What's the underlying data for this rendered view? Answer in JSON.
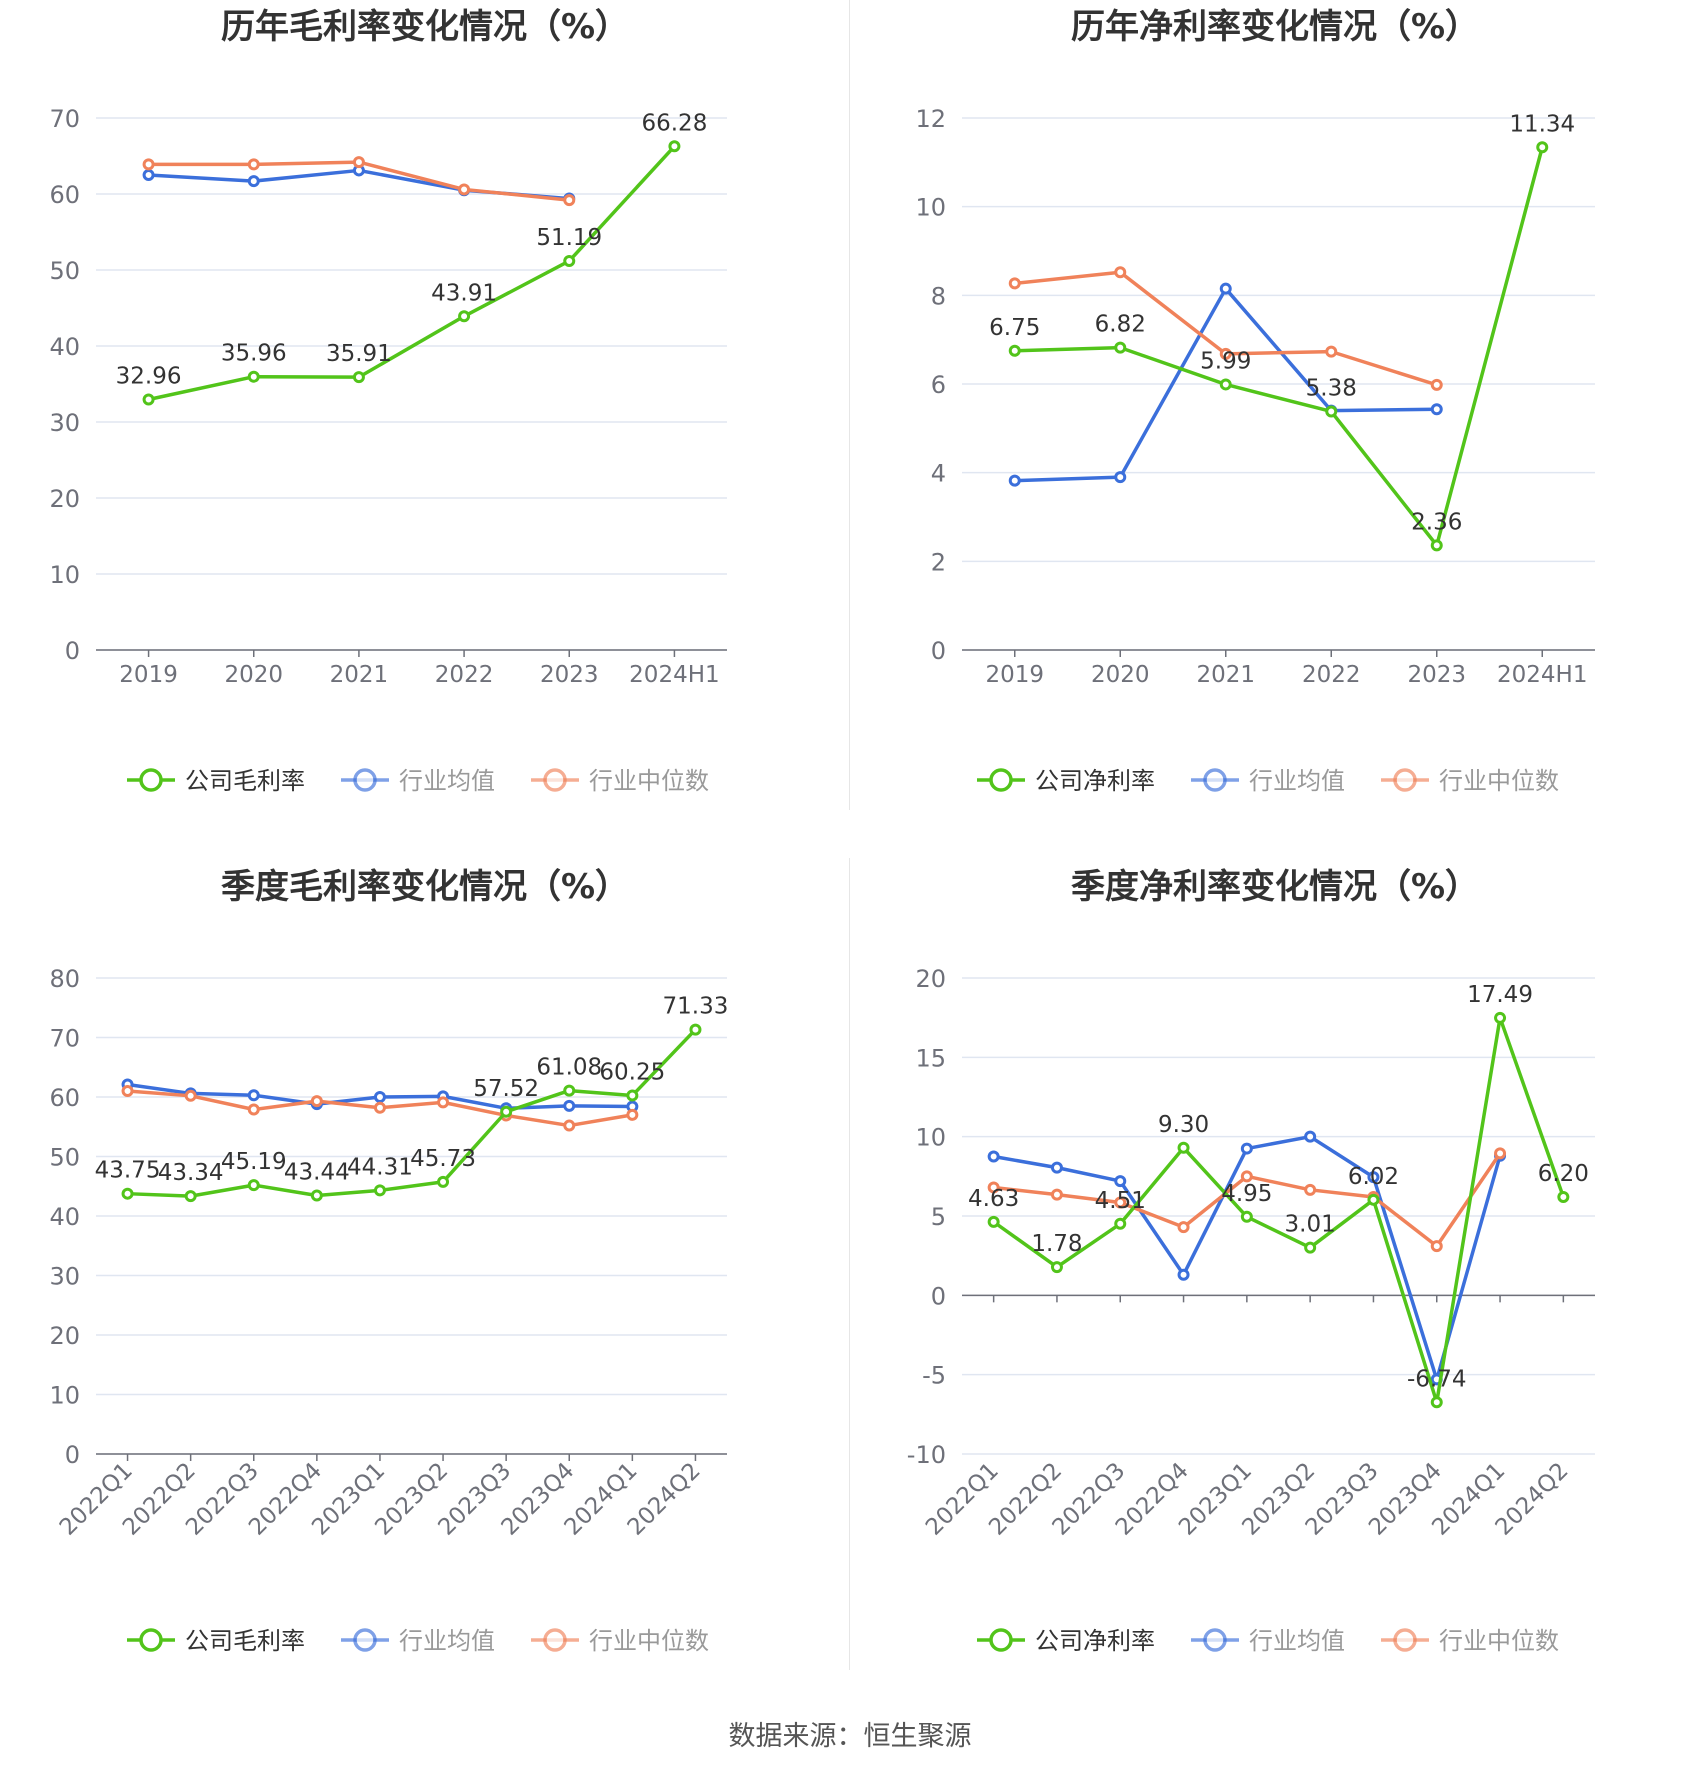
{
  "footer": {
    "source": "数据来源：恒生聚源"
  },
  "colors": {
    "company": "#52c41a",
    "avg": "#3b6fdb",
    "median": "#f0825a",
    "grid": "#e0e6f1",
    "axis": "#6e7079",
    "text": "#333333"
  },
  "chart_data": [
    {
      "type": "line",
      "title": "历年毛利率变化情况（%）",
      "categories": [
        "2019",
        "2020",
        "2021",
        "2022",
        "2023",
        "2024H1"
      ],
      "ylim": [
        0,
        70
      ],
      "yticks": [
        0,
        10,
        20,
        30,
        40,
        50,
        60,
        70
      ],
      "rotate_x": false,
      "legend_position": "bottom",
      "series": [
        {
          "name": "公司毛利率",
          "color": "#52c41a",
          "labeled": true,
          "values": [
            32.96,
            35.96,
            35.91,
            43.91,
            51.19,
            66.28
          ]
        },
        {
          "name": "行业均值",
          "color": "#3b6fdb",
          "values": [
            62.5,
            61.7,
            63.1,
            60.5,
            59.4,
            null
          ]
        },
        {
          "name": "行业中位数",
          "color": "#f0825a",
          "values": [
            63.9,
            63.9,
            64.2,
            60.6,
            59.2,
            null
          ]
        }
      ]
    },
    {
      "type": "line",
      "title": "历年净利率变化情况（%）",
      "categories": [
        "2019",
        "2020",
        "2021",
        "2022",
        "2023",
        "2024H1"
      ],
      "ylim": [
        0,
        12
      ],
      "yticks": [
        0,
        2,
        4,
        6,
        8,
        10,
        12
      ],
      "rotate_x": false,
      "legend_position": "bottom",
      "series": [
        {
          "name": "公司净利率",
          "color": "#52c41a",
          "labeled": true,
          "values": [
            6.75,
            6.82,
            5.99,
            5.38,
            2.36,
            11.34
          ]
        },
        {
          "name": "行业均值",
          "color": "#3b6fdb",
          "values": [
            3.82,
            3.9,
            8.15,
            5.4,
            5.43,
            null
          ]
        },
        {
          "name": "行业中位数",
          "color": "#f0825a",
          "values": [
            8.27,
            8.52,
            6.68,
            6.73,
            5.98,
            null
          ]
        }
      ]
    },
    {
      "type": "line",
      "title": "季度毛利率变化情况（%）",
      "categories": [
        "2022Q1",
        "2022Q2",
        "2022Q3",
        "2022Q4",
        "2023Q1",
        "2023Q2",
        "2023Q3",
        "2023Q4",
        "2024Q1",
        "2024Q2"
      ],
      "ylim": [
        0,
        80
      ],
      "yticks": [
        0,
        10,
        20,
        30,
        40,
        50,
        60,
        70,
        80
      ],
      "rotate_x": true,
      "legend_position": "bottom",
      "series": [
        {
          "name": "公司毛利率",
          "color": "#52c41a",
          "labeled": true,
          "values": [
            43.75,
            43.34,
            45.19,
            43.44,
            44.31,
            45.73,
            57.52,
            61.08,
            60.25,
            71.33
          ]
        },
        {
          "name": "行业均值",
          "color": "#3b6fdb",
          "values": [
            62.1,
            60.6,
            60.3,
            58.8,
            60.0,
            60.1,
            58.1,
            58.5,
            58.4,
            null
          ]
        },
        {
          "name": "行业中位数",
          "color": "#f0825a",
          "values": [
            61.0,
            60.2,
            57.9,
            59.3,
            58.2,
            59.1,
            56.9,
            55.2,
            57.0,
            null
          ]
        }
      ]
    },
    {
      "type": "line",
      "title": "季度净利率变化情况（%）",
      "categories": [
        "2022Q1",
        "2022Q2",
        "2022Q3",
        "2022Q4",
        "2023Q1",
        "2023Q2",
        "2023Q3",
        "2023Q4",
        "2024Q1",
        "2024Q2"
      ],
      "ylim": [
        -10,
        20
      ],
      "yticks": [
        -10,
        -5,
        0,
        5,
        10,
        15,
        20
      ],
      "rotate_x": true,
      "legend_position": "bottom",
      "series": [
        {
          "name": "公司净利率",
          "color": "#52c41a",
          "labeled": true,
          "values": [
            4.63,
            1.78,
            4.51,
            9.3,
            4.95,
            3.01,
            6.02,
            -6.74,
            17.49,
            6.2
          ]
        },
        {
          "name": "行业均值",
          "color": "#3b6fdb",
          "values": [
            8.75,
            8.05,
            7.2,
            1.3,
            9.25,
            10.0,
            7.45,
            -5.3,
            8.8,
            null
          ]
        },
        {
          "name": "行业中位数",
          "color": "#f0825a",
          "values": [
            6.8,
            6.35,
            5.85,
            4.3,
            7.5,
            6.65,
            6.2,
            3.1,
            8.95,
            null
          ]
        }
      ]
    }
  ]
}
